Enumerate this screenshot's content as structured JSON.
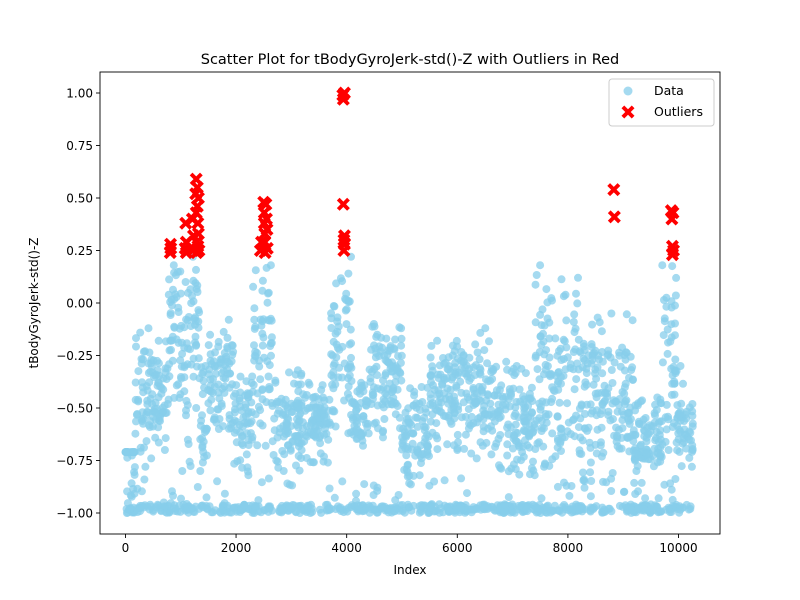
{
  "chart_data": {
    "type": "scatter",
    "title": "Scatter Plot for tBodyGyroJerk-std()-Z with Outliers in Red",
    "xlabel": "Index",
    "ylabel": "tBodyGyroJerk-std()-Z",
    "xlim": [
      -460,
      10750
    ],
    "ylim": [
      -1.1,
      1.1
    ],
    "xticks": [
      0,
      2000,
      4000,
      6000,
      8000,
      10000
    ],
    "xtick_labels": [
      "0",
      "2000",
      "4000",
      "6000",
      "8000",
      "10000"
    ],
    "yticks": [
      -1.0,
      -0.75,
      -0.5,
      -0.25,
      0.0,
      0.25,
      0.5,
      0.75,
      1.0
    ],
    "ytick_labels": [
      "−1.00",
      "−0.75",
      "−0.50",
      "−0.25",
      "0.00",
      "0.25",
      "0.50",
      "0.75",
      "1.00"
    ],
    "grid": false,
    "legend_position": "top-right",
    "series": [
      {
        "name": "Data",
        "color": "#87ceeb",
        "marker": "circle",
        "segments": [
          {
            "x": [
              0,
              180
            ],
            "lo": -1.0,
            "hi": -0.71,
            "dense": -0.55
          },
          {
            "x": [
              180,
              500
            ],
            "lo": -0.78,
            "hi": -0.12,
            "dense": -0.45
          },
          {
            "x": [
              500,
              780
            ],
            "lo": -0.7,
            "hi": -0.18,
            "dense": -0.45
          },
          {
            "x": [
              780,
              1000
            ],
            "lo": -0.46,
            "hi": 0.18,
            "dense": -0.1
          },
          {
            "x": [
              1000,
              1180
            ],
            "lo": -0.8,
            "hi": 0.1,
            "dense": -0.3
          },
          {
            "x": [
              1180,
              1350
            ],
            "lo": -0.5,
            "hi": 0.22,
            "dense": -0.1
          },
          {
            "x": [
              1350,
              1500
            ],
            "lo": -0.8,
            "hi": -0.3,
            "dense": -0.6
          },
          {
            "x": [
              1500,
              1950
            ],
            "lo": -0.6,
            "hi": -0.08,
            "dense": -0.35
          },
          {
            "x": [
              1950,
              2300
            ],
            "lo": -0.82,
            "hi": -0.35,
            "dense": -0.55
          },
          {
            "x": [
              2300,
              2650
            ],
            "lo": -0.68,
            "hi": 0.18,
            "dense": -0.3
          },
          {
            "x": [
              2650,
              3200
            ],
            "lo": -0.8,
            "hi": -0.32,
            "dense": -0.6
          },
          {
            "x": [
              3200,
              3700
            ],
            "lo": -0.76,
            "hi": -0.38,
            "dense": -0.55
          },
          {
            "x": [
              3700,
              4100
            ],
            "lo": -0.62,
            "hi": 0.22,
            "dense": -0.2
          },
          {
            "x": [
              4100,
              4400
            ],
            "lo": -0.68,
            "hi": -0.38,
            "dense": -0.55
          },
          {
            "x": [
              4400,
              5000
            ],
            "lo": -0.64,
            "hi": -0.1,
            "dense": -0.35
          },
          {
            "x": [
              5000,
              5500
            ],
            "lo": -0.87,
            "hi": -0.4,
            "dense": -0.6
          },
          {
            "x": [
              5500,
              6200
            ],
            "lo": -0.7,
            "hi": -0.18,
            "dense": -0.4
          },
          {
            "x": [
              6200,
              6700
            ],
            "lo": -0.74,
            "hi": -0.12,
            "dense": -0.45
          },
          {
            "x": [
              6700,
              7400
            ],
            "lo": -0.82,
            "hi": -0.28,
            "dense": -0.55
          },
          {
            "x": [
              7400,
              7800
            ],
            "lo": -0.78,
            "hi": 0.18,
            "dense": -0.35
          },
          {
            "x": [
              7800,
              8300
            ],
            "lo": -0.88,
            "hi": 0.12,
            "dense": -0.45
          },
          {
            "x": [
              8300,
              9200
            ],
            "lo": -0.9,
            "hi": -0.05,
            "dense": -0.45
          },
          {
            "x": [
              9200,
              9700
            ],
            "lo": -0.8,
            "hi": -0.45,
            "dense": -0.65
          },
          {
            "x": [
              9700,
              9960
            ],
            "lo": -0.7,
            "hi": 0.18,
            "dense": -0.2
          },
          {
            "x": [
              9960,
              10260
            ],
            "lo": -0.78,
            "hi": -0.3,
            "dense": -0.6
          }
        ],
        "baseline": {
          "x": [
            0,
            10260
          ],
          "y": -1.0,
          "spread": 0.04
        }
      },
      {
        "name": "Outliers",
        "color": "#ff0000",
        "marker": "x",
        "points": [
          [
            810,
            0.24
          ],
          [
            815,
            0.28
          ],
          [
            820,
            0.26
          ],
          [
            1080,
            0.26
          ],
          [
            1090,
            0.38
          ],
          [
            1100,
            0.24
          ],
          [
            1100,
            0.29
          ],
          [
            1210,
            0.4
          ],
          [
            1220,
            0.25
          ],
          [
            1230,
            0.32
          ],
          [
            1270,
            0.52
          ],
          [
            1280,
            0.59
          ],
          [
            1280,
            0.43
          ],
          [
            1290,
            0.29
          ],
          [
            1290,
            0.24
          ],
          [
            1300,
            0.55
          ],
          [
            1300,
            0.46
          ],
          [
            1310,
            0.38
          ],
          [
            1310,
            0.27
          ],
          [
            1320,
            0.5
          ],
          [
            1320,
            0.33
          ],
          [
            1330,
            0.25
          ],
          [
            2440,
            0.25
          ],
          [
            2460,
            0.29
          ],
          [
            2500,
            0.48
          ],
          [
            2510,
            0.43
          ],
          [
            2510,
            0.38
          ],
          [
            2520,
            0.33
          ],
          [
            2520,
            0.29
          ],
          [
            2525,
            0.24
          ],
          [
            2540,
            0.47
          ],
          [
            2550,
            0.4
          ],
          [
            2560,
            0.35
          ],
          [
            2565,
            0.26
          ],
          [
            3930,
            0.99
          ],
          [
            3940,
            0.97
          ],
          [
            3960,
            1.0
          ],
          [
            3940,
            0.47
          ],
          [
            3950,
            0.3
          ],
          [
            3950,
            0.25
          ],
          [
            3960,
            0.32
          ],
          [
            3960,
            0.28
          ],
          [
            8830,
            0.54
          ],
          [
            8840,
            0.41
          ],
          [
            9870,
            0.44
          ],
          [
            9880,
            0.4
          ],
          [
            9890,
            0.27
          ],
          [
            9890,
            0.23
          ],
          [
            9900,
            0.43
          ],
          [
            9910,
            0.25
          ]
        ]
      }
    ]
  }
}
